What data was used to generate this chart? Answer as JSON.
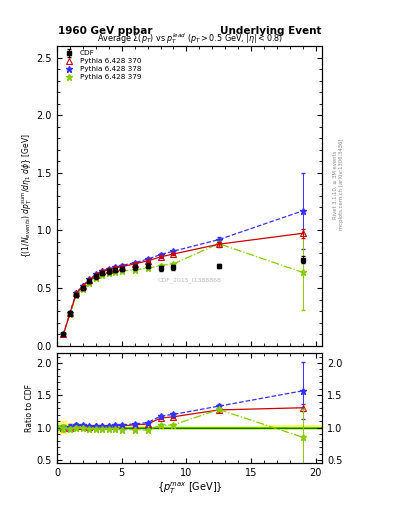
{
  "title_left": "1960 GeV ppbar",
  "title_right": "Underlying Event",
  "plot_title": "Average $\\Sigma(p_T)$ vs $p_T^{lead}$ ($p_T > 0.5$ GeV, $|\\eta| < 0.8$)",
  "ylabel_main": "{(1/N$_{events}$) dp$_T^{sum}$/d$\\eta_1$ d$\\phi$} [GeV]",
  "ylabel_ratio": "Ratio to CDF",
  "xlabel": "{$p_T^{max}$ [GeV]}",
  "right_label1": "Rivet 3.1.10, ≥ 3M events",
  "right_label2": "mcplots.cern.ch [arXiv:1306.3436]",
  "watermark": "CDF_2015_I1388868",
  "cdf_x": [
    0.5,
    1.0,
    1.5,
    2.0,
    2.5,
    3.0,
    3.5,
    4.0,
    4.5,
    5.0,
    6.0,
    7.0,
    8.0,
    9.0,
    12.5,
    19.0
  ],
  "cdf_y": [
    0.1,
    0.28,
    0.44,
    0.5,
    0.56,
    0.6,
    0.63,
    0.645,
    0.655,
    0.665,
    0.68,
    0.695,
    0.67,
    0.68,
    0.69,
    0.745
  ],
  "cdf_yerr": [
    0.01,
    0.02,
    0.02,
    0.02,
    0.02,
    0.02,
    0.02,
    0.02,
    0.02,
    0.02,
    0.02,
    0.02,
    0.02,
    0.02,
    0.02,
    0.03
  ],
  "p370_x": [
    0.5,
    1.0,
    1.5,
    2.0,
    2.5,
    3.0,
    3.5,
    4.0,
    4.5,
    5.0,
    6.0,
    7.0,
    8.0,
    9.0,
    12.5,
    19.0
  ],
  "p370_y": [
    0.1,
    0.28,
    0.455,
    0.515,
    0.57,
    0.615,
    0.645,
    0.66,
    0.675,
    0.685,
    0.71,
    0.735,
    0.77,
    0.795,
    0.88,
    0.975
  ],
  "p370_yerr": [
    0.005,
    0.01,
    0.01,
    0.01,
    0.01,
    0.01,
    0.01,
    0.01,
    0.01,
    0.01,
    0.01,
    0.01,
    0.01,
    0.01,
    0.02,
    0.04
  ],
  "p378_x": [
    0.5,
    1.0,
    1.5,
    2.0,
    2.5,
    3.0,
    3.5,
    4.0,
    4.5,
    5.0,
    6.0,
    7.0,
    8.0,
    9.0,
    12.5,
    19.0
  ],
  "p378_y": [
    0.1,
    0.285,
    0.46,
    0.52,
    0.575,
    0.62,
    0.65,
    0.665,
    0.68,
    0.695,
    0.72,
    0.75,
    0.79,
    0.82,
    0.92,
    1.17
  ],
  "p378_yerr": [
    0.005,
    0.01,
    0.01,
    0.01,
    0.01,
    0.01,
    0.01,
    0.01,
    0.01,
    0.01,
    0.01,
    0.01,
    0.01,
    0.01,
    0.02,
    0.33
  ],
  "p379_x": [
    0.5,
    1.0,
    1.5,
    2.0,
    2.5,
    3.0,
    3.5,
    4.0,
    4.5,
    5.0,
    6.0,
    7.0,
    8.0,
    9.0,
    12.5,
    19.0
  ],
  "p379_y": [
    0.1,
    0.275,
    0.44,
    0.495,
    0.545,
    0.59,
    0.615,
    0.63,
    0.64,
    0.645,
    0.66,
    0.67,
    0.695,
    0.71,
    0.885,
    0.635
  ],
  "p379_yerr": [
    0.005,
    0.01,
    0.01,
    0.01,
    0.01,
    0.01,
    0.01,
    0.01,
    0.01,
    0.01,
    0.01,
    0.01,
    0.01,
    0.01,
    0.02,
    0.33
  ],
  "ylim_main": [
    0.0,
    2.6
  ],
  "ylim_ratio": [
    0.45,
    2.15
  ],
  "xlim": [
    0.0,
    20.5
  ],
  "color_cdf": "#000000",
  "color_370": "#cc0000",
  "color_378": "#3333ff",
  "color_379": "#88cc00",
  "bg_color": "#ffffff"
}
